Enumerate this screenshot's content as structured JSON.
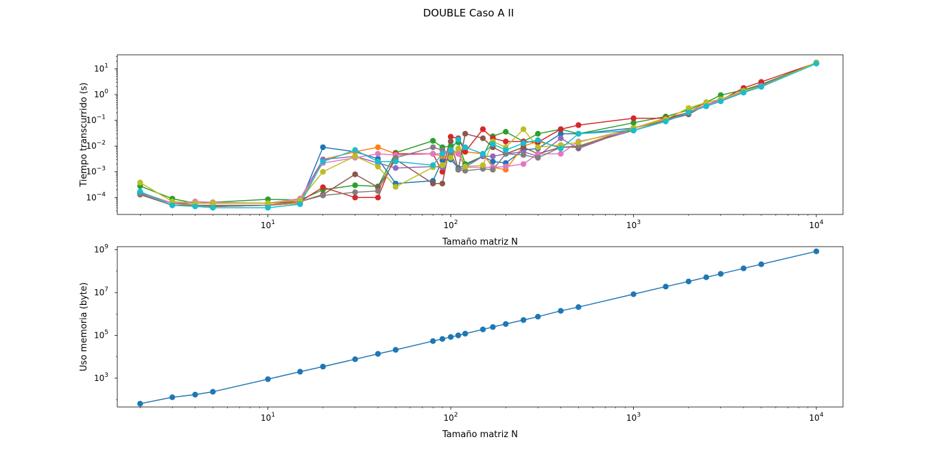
{
  "figure": {
    "title": "DOUBLE Caso A II"
  },
  "chart_data": [
    {
      "type": "line",
      "xlabel": "Tamaño matriz N",
      "ylabel": "Tiempo transcurrido (s)",
      "xscale": "log",
      "yscale": "log",
      "xlim": [
        1.5,
        14000
      ],
      "ylim": [
        2.2e-05,
        35
      ],
      "xticks": [
        {
          "value": 10,
          "base": "10",
          "exp": "1"
        },
        {
          "value": 100,
          "base": "10",
          "exp": "2"
        },
        {
          "value": 1000,
          "base": "10",
          "exp": "3"
        },
        {
          "value": 10000,
          "base": "10",
          "exp": "4"
        }
      ],
      "yticks": [
        {
          "value": 0.0001,
          "base": "10",
          "exp": "−4"
        },
        {
          "value": 0.001,
          "base": "10",
          "exp": "−3"
        },
        {
          "value": 0.01,
          "base": "10",
          "exp": "−2"
        },
        {
          "value": 0.1,
          "base": "10",
          "exp": "−1"
        },
        {
          "value": 1,
          "base": "10",
          "exp": "0"
        },
        {
          "value": 10,
          "base": "10",
          "exp": "1"
        }
      ],
      "grid": false,
      "markers": "circle",
      "x": [
        2,
        3,
        4,
        5,
        10,
        15,
        20,
        30,
        40,
        50,
        80,
        90,
        100,
        110,
        120,
        150,
        170,
        200,
        250,
        300,
        400,
        500,
        1000,
        1500,
        2000,
        2500,
        3000,
        4000,
        5000,
        10000
      ],
      "series": [
        {
          "color": "#1f77b4",
          "values": [
            0.00015,
            6e-05,
            5e-05,
            4.5e-05,
            5e-05,
            6e-05,
            0.009,
            0.006,
            0.0032,
            0.00035,
            0.00045,
            0.0028,
            0.003,
            0.0014,
            0.0018,
            0.004,
            0.0025,
            0.0022,
            0.007,
            0.008,
            0.03,
            0.03,
            0.05,
            0.11,
            0.2,
            0.4,
            0.6,
            1.3,
            2.2,
            17
          ]
        },
        {
          "color": "#ff7f0e",
          "values": [
            0.00016,
            6e-05,
            5e-05,
            4.5e-05,
            5e-05,
            6e-05,
            0.003,
            0.006,
            0.009,
            0.005,
            0.005,
            0.004,
            0.008,
            0.005,
            0.006,
            0.005,
            0.0015,
            0.0012,
            0.01,
            0.015,
            0.009,
            0.01,
            0.05,
            0.12,
            0.2,
            0.5,
            0.65,
            1.4,
            2.3,
            17
          ]
        },
        {
          "color": "#2ca02c",
          "values": [
            0.00028,
            9e-05,
            6e-05,
            6.5e-05,
            8.5e-05,
            8e-05,
            0.0002,
            0.0003,
            0.00027,
            0.0055,
            0.016,
            0.009,
            0.01,
            0.014,
            0.002,
            0.004,
            0.024,
            0.036,
            0.015,
            0.03,
            0.045,
            0.03,
            0.08,
            0.14,
            0.25,
            0.5,
            0.95,
            1.5,
            2.5,
            17
          ]
        },
        {
          "color": "#d62728",
          "values": [
            0.00014,
            6e-05,
            6e-05,
            6e-05,
            6e-05,
            7e-05,
            0.00025,
            0.0001,
            0.0001,
            0.005,
            0.005,
            0.001,
            0.023,
            0.02,
            0.006,
            0.045,
            0.02,
            0.015,
            0.015,
            0.014,
            0.045,
            0.065,
            0.12,
            0.12,
            0.2,
            0.4,
            0.6,
            1.8,
            3.1,
            17
          ]
        },
        {
          "color": "#9467bd",
          "values": [
            0.00015,
            6e-05,
            6e-05,
            6e-05,
            6e-05,
            9e-05,
            0.003,
            0.004,
            0.0022,
            0.0014,
            0.0016,
            0.0015,
            0.005,
            0.0012,
            0.0015,
            0.004,
            0.004,
            0.005,
            0.006,
            0.004,
            0.02,
            0.008,
            0.05,
            0.1,
            0.2,
            0.4,
            0.65,
            1.4,
            2.2,
            17
          ]
        },
        {
          "color": "#8c564b",
          "values": [
            0.00013,
            5e-05,
            5e-05,
            4.5e-05,
            5e-05,
            7e-05,
            0.00013,
            0.0008,
            0.00025,
            0.003,
            0.00035,
            0.00035,
            0.015,
            0.0012,
            0.03,
            0.02,
            0.009,
            0.005,
            0.009,
            0.005,
            0.009,
            0.009,
            0.05,
            0.1,
            0.17,
            0.4,
            0.6,
            1.3,
            2.1,
            17
          ]
        },
        {
          "color": "#e377c2",
          "values": [
            0.00014,
            6e-05,
            7e-05,
            6.5e-05,
            6e-05,
            9e-05,
            0.0022,
            0.0035,
            0.005,
            0.0045,
            0.005,
            0.005,
            0.006,
            0.005,
            0.0015,
            0.0015,
            0.0015,
            0.0016,
            0.002,
            0.005,
            0.005,
            0.015,
            0.04,
            0.1,
            0.2,
            0.4,
            0.6,
            1.3,
            2.1,
            17
          ]
        },
        {
          "color": "#7f7f7f",
          "values": [
            0.00014,
            5e-05,
            5e-05,
            5e-05,
            5e-05,
            7e-05,
            0.00012,
            0.00016,
            0.00018,
            0.0035,
            0.009,
            0.007,
            0.005,
            0.0012,
            0.0011,
            0.0013,
            0.0012,
            0.005,
            0.0045,
            0.0035,
            0.009,
            0.01,
            0.04,
            0.1,
            0.2,
            0.35,
            0.55,
            1.2,
            2.0,
            17
          ]
        },
        {
          "color": "#bcbd22",
          "values": [
            0.00038,
            7e-05,
            6e-05,
            6e-05,
            6e-05,
            8e-05,
            0.001,
            0.004,
            0.0016,
            0.00026,
            0.0015,
            0.0018,
            0.0035,
            0.008,
            0.0016,
            0.0018,
            0.015,
            0.009,
            0.045,
            0.009,
            0.011,
            0.014,
            0.05,
            0.11,
            0.3,
            0.5,
            0.65,
            1.4,
            2.0,
            18
          ]
        },
        {
          "color": "#17becf",
          "values": [
            0.00017,
            5e-05,
            4.5e-05,
            4e-05,
            4e-05,
            5.5e-05,
            0.0025,
            0.007,
            0.0025,
            0.0025,
            0.0018,
            0.005,
            0.007,
            0.018,
            0.009,
            0.005,
            0.012,
            0.007,
            0.013,
            0.017,
            0.008,
            0.03,
            0.04,
            0.09,
            0.2,
            0.35,
            0.55,
            1.2,
            2.0,
            16
          ]
        }
      ]
    },
    {
      "type": "line",
      "xlabel": "Tamaño matriz N",
      "ylabel": "Uso memoria (byte)",
      "xscale": "log",
      "yscale": "log",
      "xlim": [
        1.5,
        14000
      ],
      "ylim": [
        45,
        1400000000
      ],
      "xticks": [
        {
          "value": 10,
          "base": "10",
          "exp": "1"
        },
        {
          "value": 100,
          "base": "10",
          "exp": "2"
        },
        {
          "value": 1000,
          "base": "10",
          "exp": "3"
        },
        {
          "value": 10000,
          "base": "10",
          "exp": "4"
        }
      ],
      "yticks": [
        {
          "value": 1000,
          "base": "10",
          "exp": "3"
        },
        {
          "value": 100000,
          "base": "10",
          "exp": "5"
        },
        {
          "value": 10000000,
          "base": "10",
          "exp": "7"
        },
        {
          "value": 1000000000,
          "base": "10",
          "exp": "9"
        }
      ],
      "grid": false,
      "markers": "circle",
      "x": [
        2,
        3,
        4,
        5,
        10,
        15,
        20,
        30,
        40,
        50,
        80,
        90,
        100,
        110,
        120,
        150,
        170,
        200,
        250,
        300,
        400,
        500,
        1000,
        1500,
        2000,
        2500,
        3000,
        4000,
        5000,
        10000
      ],
      "series": [
        {
          "color": "#1f77b4",
          "values": [
            64,
            128,
            170,
            232,
            900,
            2000,
            3450,
            7700,
            13600,
            21000,
            54000,
            68000,
            84000,
            100000,
            120000,
            190000,
            245000,
            340000,
            520000,
            750000,
            1400000,
            2100000,
            8400000,
            19000000,
            33000000,
            52000000,
            75000000,
            135000000,
            210000000,
            850000000
          ]
        }
      ]
    }
  ]
}
